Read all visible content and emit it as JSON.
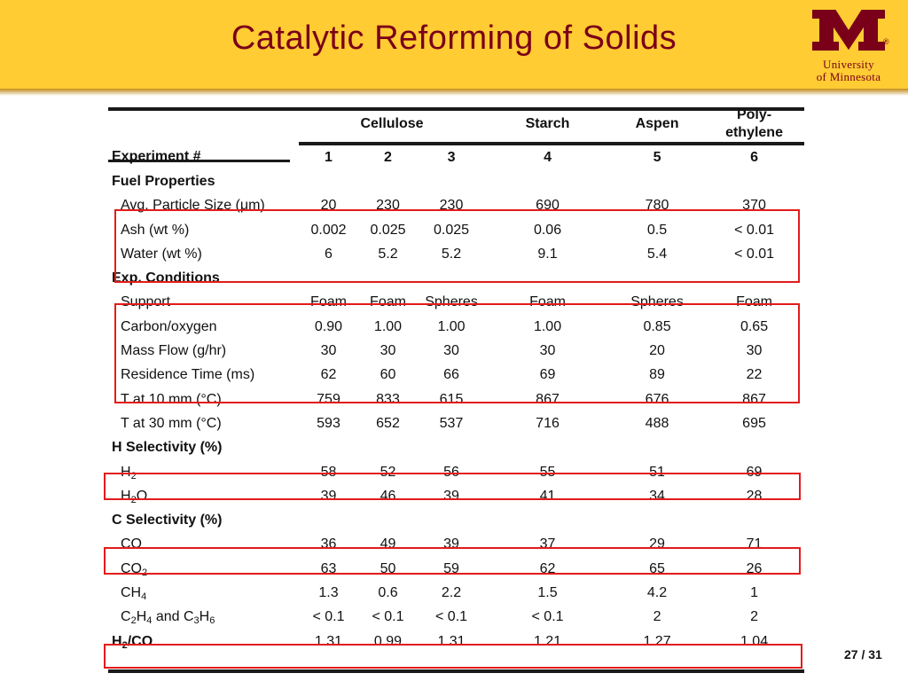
{
  "slide": {
    "title": "Catalytic Reforming of Solids",
    "logo": {
      "line1": "University",
      "line2": "of Minnesota",
      "reg": "®"
    },
    "page": "27",
    "total": "31",
    "page_sep": "/"
  },
  "table": {
    "groups": {
      "cellulose": "Cellulose",
      "starch": "Starch",
      "aspen": "Aspen",
      "poly1": "Poly-",
      "poly2": "ethylene"
    },
    "header": {
      "label": "Experiment #",
      "cols": [
        "1",
        "2",
        "3",
        "4",
        "5",
        "6"
      ]
    },
    "sections": {
      "fuel": "Fuel Properties",
      "exp": "Exp. Conditions",
      "hsel": "H Selectivity (%)",
      "csel": "C Selectivity (%)"
    },
    "rows": {
      "particle": {
        "label": "Avg. Particle Size (μm)",
        "vals": [
          "20",
          "230",
          "230",
          "690",
          "780",
          "370"
        ]
      },
      "ash": {
        "label": "Ash (wt %)",
        "vals": [
          "0.002",
          "0.025",
          "0.025",
          "0.06",
          "0.5",
          "< 0.01"
        ]
      },
      "water": {
        "label": "Water (wt %)",
        "vals": [
          "6",
          "5.2",
          "5.2",
          "9.1",
          "5.4",
          "< 0.01"
        ]
      },
      "support": {
        "label": "Support",
        "vals": [
          "Foam",
          "Foam",
          "Spheres",
          "Foam",
          "Spheres",
          "Foam"
        ]
      },
      "co_ratio": {
        "label": "Carbon/oxygen",
        "vals": [
          "0.90",
          "1.00",
          "1.00",
          "1.00",
          "0.85",
          "0.65"
        ]
      },
      "massflow": {
        "label": "Mass Flow (g/hr)",
        "vals": [
          "30",
          "30",
          "30",
          "30",
          "20",
          "30"
        ]
      },
      "residence": {
        "label": "Residence Time (ms)",
        "vals": [
          "62",
          "60",
          "66",
          "69",
          "89",
          "22"
        ]
      },
      "t10": {
        "label": "T at 10 mm (°C)",
        "vals": [
          "759",
          "833",
          "615",
          "867",
          "676",
          "867"
        ]
      },
      "t30": {
        "label": "T at 30 mm (°C)",
        "vals": [
          "593",
          "652",
          "537",
          "716",
          "488",
          "695"
        ]
      },
      "h2": {
        "label": "H",
        "sub": "2",
        "vals": [
          "58",
          "52",
          "56",
          "55",
          "51",
          "69"
        ]
      },
      "h2o": {
        "label_a": "H",
        "sub": "2",
        "label_b": "O",
        "vals": [
          "39",
          "46",
          "39",
          "41",
          "34",
          "28"
        ]
      },
      "co": {
        "label": "CO",
        "vals": [
          "36",
          "49",
          "39",
          "37",
          "29",
          "71"
        ]
      },
      "co2": {
        "label": "CO",
        "sub": "2",
        "vals": [
          "63",
          "50",
          "59",
          "62",
          "65",
          "26"
        ]
      },
      "ch4": {
        "label": "CH",
        "sub": "4",
        "vals": [
          "1.3",
          "0.6",
          "2.2",
          "1.5",
          "4.2",
          "1"
        ]
      },
      "c2": {
        "p1": "C",
        "s1": "2",
        "p2": "H",
        "s2": "4",
        "p3": " and C",
        "s3": "3",
        "p4": "H",
        "s4": "6",
        "vals": [
          "< 0.1",
          "< 0.1",
          "< 0.1",
          "< 0.1",
          "2",
          "2"
        ]
      },
      "h2co": {
        "p1": "H",
        "s1": "2",
        "p2": "/CO",
        "vals": [
          "1.31",
          "0.99",
          "1.31",
          "1.21",
          "1.27",
          "1.04"
        ]
      }
    }
  }
}
